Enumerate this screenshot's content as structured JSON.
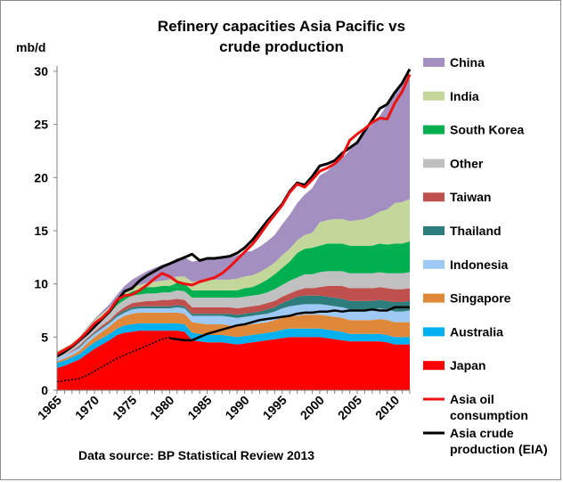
{
  "chart_data": {
    "type": "area",
    "title_lines": [
      "Refinery capacities Asia Pacific vs",
      "crude production"
    ],
    "ylabel": "mb/d",
    "ylim": [
      0,
      30
    ],
    "yticks": [
      "0",
      "5",
      "10",
      "15",
      "20",
      "25",
      "30"
    ],
    "xlim": [
      1965,
      2012
    ],
    "xticks": [
      "1965",
      "1970",
      "1975",
      "1980",
      "1985",
      "1990",
      "1995",
      "2000",
      "2005",
      "2010"
    ],
    "source": "Data source: BP Statistical Review 2013",
    "legend_position": "right",
    "x": [
      1965,
      1966,
      1967,
      1968,
      1969,
      1970,
      1971,
      1972,
      1973,
      1974,
      1975,
      1976,
      1977,
      1978,
      1979,
      1980,
      1981,
      1982,
      1983,
      1984,
      1985,
      1986,
      1987,
      1988,
      1989,
      1990,
      1991,
      1992,
      1993,
      1994,
      1995,
      1996,
      1997,
      1998,
      1999,
      2000,
      2001,
      2002,
      2003,
      2004,
      2005,
      2006,
      2007,
      2008,
      2009,
      2010,
      2011,
      2012
    ],
    "stacked_series": [
      {
        "name": "Japan",
        "color": "#ff0000",
        "values": [
          2.1,
          2.3,
          2.6,
          2.9,
          3.4,
          3.9,
          4.3,
          4.7,
          5.2,
          5.4,
          5.5,
          5.6,
          5.6,
          5.6,
          5.6,
          5.6,
          5.6,
          5.5,
          4.7,
          4.6,
          4.5,
          4.5,
          4.5,
          4.4,
          4.3,
          4.4,
          4.5,
          4.6,
          4.7,
          4.8,
          4.9,
          5.0,
          5.0,
          5.0,
          5.0,
          5.0,
          4.9,
          4.8,
          4.7,
          4.6,
          4.6,
          4.6,
          4.6,
          4.6,
          4.5,
          4.3,
          4.3,
          4.3
        ]
      },
      {
        "name": "Australia",
        "color": "#00b0f0",
        "values": [
          0.5,
          0.5,
          0.5,
          0.5,
          0.6,
          0.6,
          0.6,
          0.6,
          0.6,
          0.7,
          0.7,
          0.7,
          0.7,
          0.7,
          0.7,
          0.7,
          0.7,
          0.7,
          0.7,
          0.7,
          0.7,
          0.7,
          0.7,
          0.7,
          0.7,
          0.7,
          0.7,
          0.7,
          0.7,
          0.7,
          0.8,
          0.8,
          0.8,
          0.8,
          0.8,
          0.8,
          0.8,
          0.8,
          0.8,
          0.7,
          0.7,
          0.7,
          0.7,
          0.7,
          0.7,
          0.7,
          0.7,
          0.7
        ]
      },
      {
        "name": "Singapore",
        "color": "#e0883a",
        "values": [
          0.1,
          0.2,
          0.2,
          0.3,
          0.4,
          0.5,
          0.6,
          0.7,
          0.8,
          0.9,
          1.0,
          1.0,
          1.0,
          1.0,
          1.0,
          1.0,
          1.0,
          1.0,
          1.0,
          1.0,
          1.0,
          1.0,
          1.0,
          1.0,
          1.0,
          1.0,
          1.0,
          1.0,
          1.0,
          1.1,
          1.1,
          1.2,
          1.2,
          1.3,
          1.3,
          1.3,
          1.3,
          1.3,
          1.3,
          1.3,
          1.3,
          1.3,
          1.3,
          1.4,
          1.4,
          1.4,
          1.4,
          1.4
        ]
      },
      {
        "name": "Indonesia",
        "color": "#9ec9f5",
        "values": [
          0.3,
          0.3,
          0.3,
          0.3,
          0.3,
          0.3,
          0.3,
          0.3,
          0.3,
          0.3,
          0.4,
          0.4,
          0.4,
          0.4,
          0.4,
          0.4,
          0.5,
          0.5,
          0.6,
          0.7,
          0.8,
          0.8,
          0.8,
          0.8,
          0.8,
          0.8,
          0.8,
          0.8,
          0.8,
          0.8,
          0.9,
          0.9,
          1.0,
          1.0,
          1.0,
          1.0,
          1.0,
          1.0,
          1.0,
          1.0,
          1.0,
          1.0,
          1.0,
          1.0,
          1.0,
          1.0,
          1.0,
          1.1
        ]
      },
      {
        "name": "Thailand",
        "color": "#2e7d7d",
        "values": [
          0.0,
          0.0,
          0.0,
          0.1,
          0.1,
          0.1,
          0.1,
          0.1,
          0.2,
          0.2,
          0.2,
          0.2,
          0.2,
          0.2,
          0.2,
          0.2,
          0.2,
          0.2,
          0.2,
          0.2,
          0.2,
          0.2,
          0.2,
          0.3,
          0.3,
          0.3,
          0.3,
          0.3,
          0.4,
          0.4,
          0.5,
          0.6,
          0.8,
          0.8,
          0.8,
          0.8,
          0.8,
          0.8,
          0.8,
          0.8,
          0.8,
          0.8,
          0.8,
          0.8,
          0.8,
          0.9,
          0.9,
          0.9
        ]
      },
      {
        "name": "Taiwan",
        "color": "#c0504d",
        "values": [
          0.0,
          0.0,
          0.1,
          0.1,
          0.1,
          0.1,
          0.2,
          0.2,
          0.2,
          0.3,
          0.4,
          0.4,
          0.5,
          0.5,
          0.6,
          0.6,
          0.6,
          0.6,
          0.6,
          0.6,
          0.6,
          0.6,
          0.6,
          0.6,
          0.6,
          0.6,
          0.6,
          0.6,
          0.6,
          0.6,
          0.6,
          0.6,
          0.6,
          0.7,
          0.7,
          0.8,
          1.0,
          1.1,
          1.2,
          1.2,
          1.2,
          1.2,
          1.2,
          1.2,
          1.2,
          1.2,
          1.2,
          1.2
        ]
      },
      {
        "name": "Other",
        "color": "#c0c0c0",
        "values": [
          0.5,
          0.5,
          0.5,
          0.5,
          0.5,
          0.6,
          0.6,
          0.6,
          0.7,
          0.7,
          0.7,
          0.7,
          0.7,
          0.7,
          0.7,
          0.7,
          0.8,
          0.8,
          0.9,
          0.9,
          0.9,
          0.9,
          0.9,
          0.9,
          1.0,
          1.0,
          1.0,
          1.0,
          1.0,
          1.1,
          1.1,
          1.2,
          1.2,
          1.3,
          1.3,
          1.4,
          1.4,
          1.4,
          1.4,
          1.4,
          1.4,
          1.4,
          1.4,
          1.4,
          1.4,
          1.5,
          1.5,
          1.5
        ]
      },
      {
        "name": "South Korea",
        "color": "#00b050",
        "values": [
          0.0,
          0.0,
          0.0,
          0.1,
          0.1,
          0.2,
          0.2,
          0.3,
          0.3,
          0.4,
          0.4,
          0.5,
          0.6,
          0.6,
          0.6,
          0.6,
          0.7,
          0.7,
          0.7,
          0.7,
          0.7,
          0.7,
          0.7,
          0.7,
          0.7,
          0.8,
          0.8,
          1.0,
          1.2,
          1.4,
          1.6,
          1.8,
          2.3,
          2.4,
          2.5,
          2.5,
          2.6,
          2.6,
          2.6,
          2.6,
          2.6,
          2.6,
          2.6,
          2.7,
          2.7,
          2.8,
          2.8,
          2.9
        ]
      },
      {
        "name": "India",
        "color": "#c4d79b",
        "values": [
          0.2,
          0.2,
          0.2,
          0.2,
          0.3,
          0.3,
          0.3,
          0.3,
          0.3,
          0.4,
          0.4,
          0.4,
          0.4,
          0.5,
          0.5,
          0.6,
          0.6,
          0.7,
          0.8,
          0.9,
          0.9,
          1.0,
          1.0,
          1.0,
          1.1,
          1.1,
          1.1,
          1.1,
          1.1,
          1.1,
          1.2,
          1.2,
          1.2,
          1.3,
          1.4,
          2.2,
          2.2,
          2.3,
          2.3,
          2.3,
          2.4,
          2.5,
          2.8,
          3.0,
          3.3,
          3.8,
          3.9,
          4.0
        ]
      },
      {
        "name": "China",
        "color": "#a390c0",
        "values": [
          0.0,
          0.0,
          0.0,
          0.0,
          0.1,
          0.1,
          0.2,
          0.3,
          0.4,
          0.5,
          0.7,
          0.9,
          1.1,
          1.3,
          1.5,
          1.6,
          1.7,
          1.8,
          1.9,
          1.9,
          2.0,
          2.0,
          2.0,
          2.1,
          2.2,
          2.3,
          2.3,
          2.4,
          2.5,
          2.6,
          2.9,
          3.2,
          3.5,
          3.8,
          4.2,
          4.4,
          4.6,
          5.2,
          5.7,
          6.7,
          7.3,
          8.2,
          8.6,
          9.0,
          9.9,
          10.3,
          11.2,
          11.5
        ]
      }
    ],
    "line_series": [
      {
        "name": "Asia oil consumption",
        "color": "#ee1111",
        "values": [
          3.4,
          3.8,
          4.2,
          4.8,
          5.5,
          6.3,
          6.8,
          7.5,
          8.5,
          8.9,
          9.0,
          9.4,
          9.9,
          10.5,
          11.0,
          10.7,
          10.2,
          10.0,
          9.9,
          10.2,
          10.4,
          10.6,
          11.0,
          11.6,
          12.3,
          13.0,
          13.7,
          14.6,
          15.6,
          16.5,
          17.4,
          18.6,
          19.4,
          19.1,
          19.8,
          20.6,
          20.9,
          21.3,
          22.0,
          23.5,
          24.1,
          24.6,
          25.2,
          25.6,
          25.5,
          27.0,
          28.1,
          29.7
        ]
      },
      {
        "name": "Asia crude production (EIA)",
        "color": "#000000",
        "values": [
          3.2,
          3.6,
          4.1,
          4.7,
          5.3,
          6.0,
          6.7,
          7.4,
          8.4,
          9.3,
          9.6,
          10.3,
          10.8,
          11.2,
          11.6,
          11.9,
          12.2,
          12.5,
          12.8,
          12.2,
          12.4,
          12.4,
          12.5,
          12.6,
          12.9,
          13.4,
          14.1,
          15.0,
          15.9,
          16.7,
          17.5,
          18.7,
          19.5,
          19.3,
          20.1,
          21.1,
          21.3,
          21.6,
          22.3,
          22.8,
          23.3,
          24.4,
          25.4,
          26.5,
          26.9,
          28.0,
          28.9,
          30.2
        ]
      }
    ],
    "dotted_series": {
      "color": "#000000",
      "x": [
        1965,
        1966,
        1967,
        1968,
        1969,
        1970,
        1971,
        1972,
        1973,
        1974,
        1975,
        1976,
        1977,
        1978,
        1979,
        1980
      ],
      "values": [
        0.8,
        0.9,
        1.0,
        1.1,
        1.4,
        1.8,
        2.2,
        2.6,
        3.0,
        3.3,
        3.6,
        3.9,
        4.2,
        4.5,
        4.8,
        5.0
      ]
    },
    "bottom_line": {
      "color": "#000000",
      "x": [
        1980,
        1981,
        1982,
        1983,
        1984,
        1985,
        1986,
        1987,
        1988,
        1989,
        1990,
        1991,
        1992,
        1993,
        1994,
        1995,
        1996,
        1997,
        1998,
        1999,
        2000,
        2001,
        2002,
        2003,
        2004,
        2005,
        2006,
        2007,
        2008,
        2009,
        2010,
        2011,
        2012
      ],
      "values": [
        4.9,
        4.8,
        4.7,
        4.7,
        5.0,
        5.3,
        5.5,
        5.7,
        5.9,
        6.1,
        6.2,
        6.4,
        6.6,
        6.7,
        6.8,
        6.9,
        7.0,
        7.2,
        7.3,
        7.3,
        7.4,
        7.4,
        7.5,
        7.4,
        7.5,
        7.5,
        7.5,
        7.6,
        7.5,
        7.5,
        7.8,
        7.8,
        7.8
      ]
    },
    "legend": [
      {
        "label": "China",
        "kind": "box",
        "color": "#a390c0"
      },
      {
        "label": "India",
        "kind": "box",
        "color": "#c4d79b"
      },
      {
        "label": "South Korea",
        "kind": "box",
        "color": "#00b050"
      },
      {
        "label": "Other",
        "kind": "box",
        "color": "#c0c0c0"
      },
      {
        "label": "Taiwan",
        "kind": "box",
        "color": "#c0504d"
      },
      {
        "label": "Thailand",
        "kind": "box",
        "color": "#2e7d7d"
      },
      {
        "label": "Indonesia",
        "kind": "box",
        "color": "#9ec9f5"
      },
      {
        "label": "Singapore",
        "kind": "box",
        "color": "#e0883a"
      },
      {
        "label": "Australia",
        "kind": "box",
        "color": "#00b0f0"
      },
      {
        "label": "Japan",
        "kind": "box",
        "color": "#ff0000"
      },
      {
        "label": "Asia oil consumption",
        "lines": [
          "Asia oil",
          "consumption"
        ],
        "kind": "line",
        "color": "#ee1111"
      },
      {
        "label": "Asia crude production (EIA)",
        "lines": [
          "Asia crude",
          "production (EIA)"
        ],
        "kind": "line",
        "color": "#000000"
      }
    ]
  }
}
